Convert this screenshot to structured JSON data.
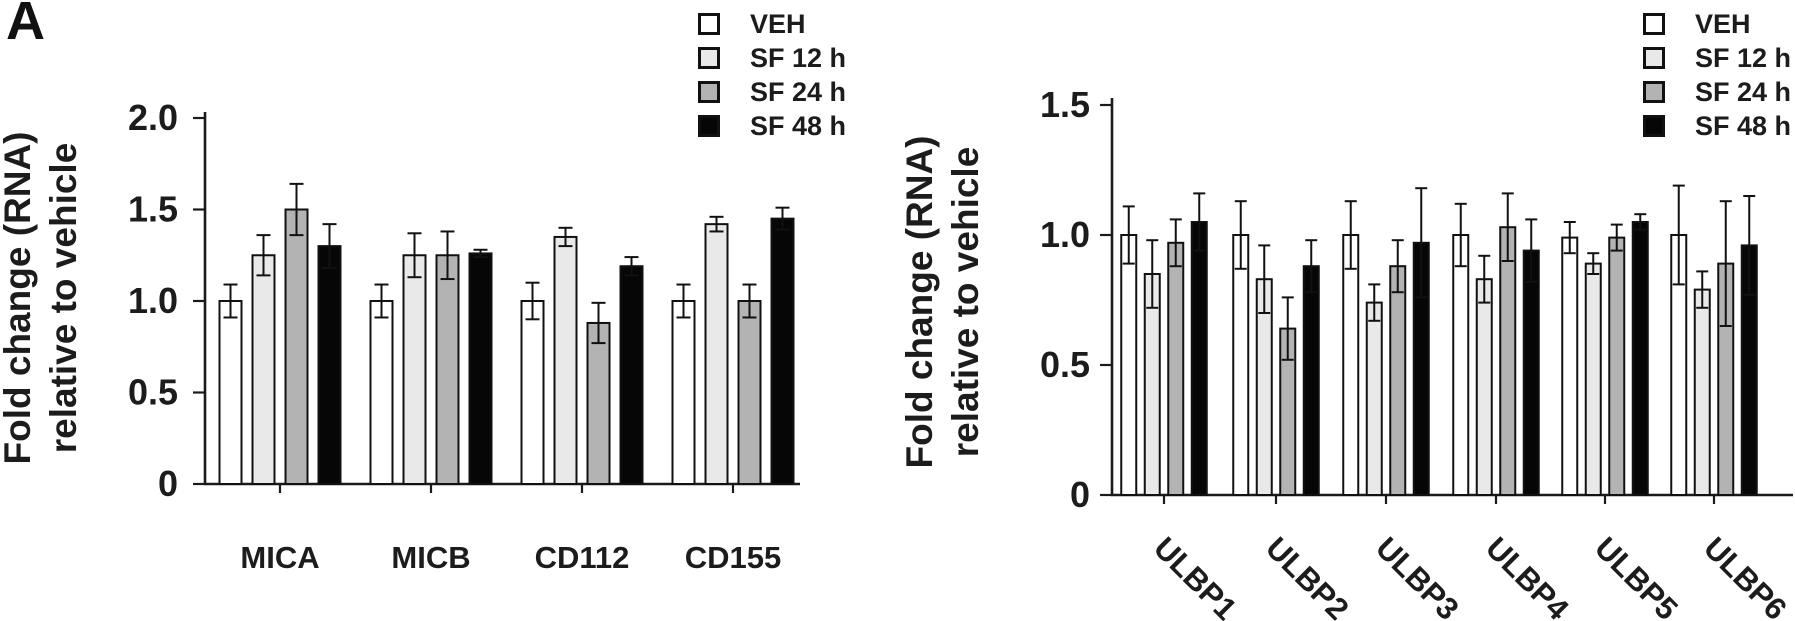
{
  "panel_label": "A",
  "colors": {
    "bar_outline": "#111111",
    "axis": "#1a1a1a",
    "text": "#1c1c1c",
    "veh_fill": "#ffffff",
    "sf12_fill": "#e9e9e9",
    "sf24_fill": "#b3b3b3",
    "sf48_fill": "#060606"
  },
  "legend": {
    "items": [
      {
        "label": "VEH",
        "fill": "#ffffff"
      },
      {
        "label": "SF 12 h",
        "fill": "#e9e9e9"
      },
      {
        "label": "SF 24 h",
        "fill": "#b3b3b3"
      },
      {
        "label": "SF 48 h",
        "fill": "#060606"
      }
    ]
  },
  "chart_data": [
    {
      "type": "bar",
      "title": "",
      "ylabel_lines": [
        "Fold change (RNA)",
        "relative to vehicle"
      ],
      "categories": [
        "MICA",
        "MICB",
        "CD112",
        "CD155"
      ],
      "series": [
        {
          "name": "VEH",
          "fill": "#ffffff",
          "values": [
            1.0,
            1.0,
            1.0,
            1.0
          ],
          "errors": [
            0.09,
            0.09,
            0.1,
            0.09
          ]
        },
        {
          "name": "SF 12 h",
          "fill": "#e9e9e9",
          "values": [
            1.25,
            1.25,
            1.35,
            1.42
          ],
          "errors": [
            0.11,
            0.12,
            0.05,
            0.04
          ]
        },
        {
          "name": "SF 24 h",
          "fill": "#b3b3b3",
          "values": [
            1.5,
            1.25,
            0.88,
            1.0
          ],
          "errors": [
            0.14,
            0.13,
            0.11,
            0.09
          ]
        },
        {
          "name": "SF 48 h",
          "fill": "#060606",
          "values": [
            1.3,
            1.26,
            1.19,
            1.45
          ],
          "errors": [
            0.12,
            0.02,
            0.05,
            0.06
          ]
        }
      ],
      "ylim": [
        0,
        2.0
      ],
      "yticks": [
        0,
        0.5,
        1.0,
        1.5,
        2.0
      ],
      "ytick_labels": [
        "0",
        "0.5",
        "1.0",
        "1.5",
        "2.0"
      ],
      "xlabel_rotation": 0,
      "grid": false,
      "error_bars": true,
      "legend_position": "top-right-outside"
    },
    {
      "type": "bar",
      "title": "",
      "ylabel_lines": [
        "Fold change (RNA)",
        "relative to vehicle"
      ],
      "categories": [
        "ULBP1",
        "ULBP2",
        "ULBP3",
        "ULBP4",
        "ULBP5",
        "ULBP6"
      ],
      "series": [
        {
          "name": "VEH",
          "fill": "#ffffff",
          "values": [
            1.0,
            1.0,
            1.0,
            1.0,
            0.99,
            1.0
          ],
          "errors": [
            0.11,
            0.13,
            0.13,
            0.12,
            0.06,
            0.19
          ]
        },
        {
          "name": "SF 12 h",
          "fill": "#e9e9e9",
          "values": [
            0.85,
            0.83,
            0.74,
            0.83,
            0.89,
            0.79
          ],
          "errors": [
            0.13,
            0.13,
            0.07,
            0.09,
            0.04,
            0.07
          ]
        },
        {
          "name": "SF 24 h",
          "fill": "#b3b3b3",
          "values": [
            0.97,
            0.64,
            0.88,
            1.03,
            0.99,
            0.89
          ],
          "errors": [
            0.09,
            0.12,
            0.1,
            0.13,
            0.05,
            0.24
          ]
        },
        {
          "name": "SF 48 h",
          "fill": "#060606",
          "values": [
            1.05,
            0.88,
            0.97,
            0.94,
            1.05,
            0.96
          ],
          "errors": [
            0.11,
            0.1,
            0.21,
            0.12,
            0.03,
            0.19
          ]
        }
      ],
      "ylim": [
        0,
        1.5
      ],
      "yticks": [
        0,
        0.5,
        1.0,
        1.5
      ],
      "ytick_labels": [
        "0",
        "0.5",
        "1.0",
        "1.5"
      ],
      "xlabel_rotation": 45,
      "grid": false,
      "error_bars": true,
      "legend_position": "top-right-outside"
    }
  ]
}
